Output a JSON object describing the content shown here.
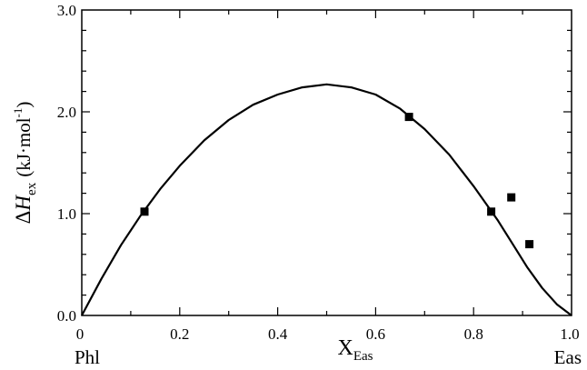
{
  "chart_data": {
    "type": "scatter",
    "xlim": [
      0,
      1
    ],
    "ylim": [
      0,
      3
    ],
    "x_ticks": [
      "0",
      "0.2",
      "0.4",
      "0.6",
      "0.8",
      "1.0"
    ],
    "y_ticks": [
      "0.0",
      "1.0",
      "2.0",
      "3.0"
    ],
    "x_tick_values": [
      0,
      0.2,
      0.4,
      0.6,
      0.8,
      1.0
    ],
    "y_tick_values": [
      0,
      1,
      2,
      3
    ],
    "xlabel": {
      "main": "X",
      "sub": "Eas"
    },
    "ylabel": {
      "delta": "Δ",
      "main": "H",
      "sub": "ex",
      "unit": "(kJ·mol",
      "sup": "-1",
      "close": ")"
    },
    "end_labels": {
      "left": "Phl",
      "right": "Eas"
    },
    "grid": false,
    "series": [
      {
        "kind": "points",
        "marker": "square",
        "x": [
          0.128,
          0.668,
          0.836,
          0.877,
          0.914
        ],
        "y": [
          1.02,
          1.95,
          1.02,
          1.16,
          0.7
        ]
      },
      {
        "kind": "line",
        "x": [
          0,
          0.04,
          0.08,
          0.12,
          0.16,
          0.2,
          0.25,
          0.3,
          0.35,
          0.4,
          0.45,
          0.5,
          0.55,
          0.6,
          0.65,
          0.7,
          0.75,
          0.8,
          0.85,
          0.88,
          0.91,
          0.94,
          0.97,
          1.0
        ],
        "y": [
          0,
          0.36,
          0.69,
          0.98,
          1.24,
          1.47,
          1.72,
          1.92,
          2.07,
          2.17,
          2.24,
          2.27,
          2.24,
          2.17,
          2.03,
          1.83,
          1.58,
          1.27,
          0.93,
          0.7,
          0.47,
          0.27,
          0.11,
          0
        ]
      }
    ],
    "colors": {
      "line": "#000000",
      "marker": "#000000"
    }
  }
}
